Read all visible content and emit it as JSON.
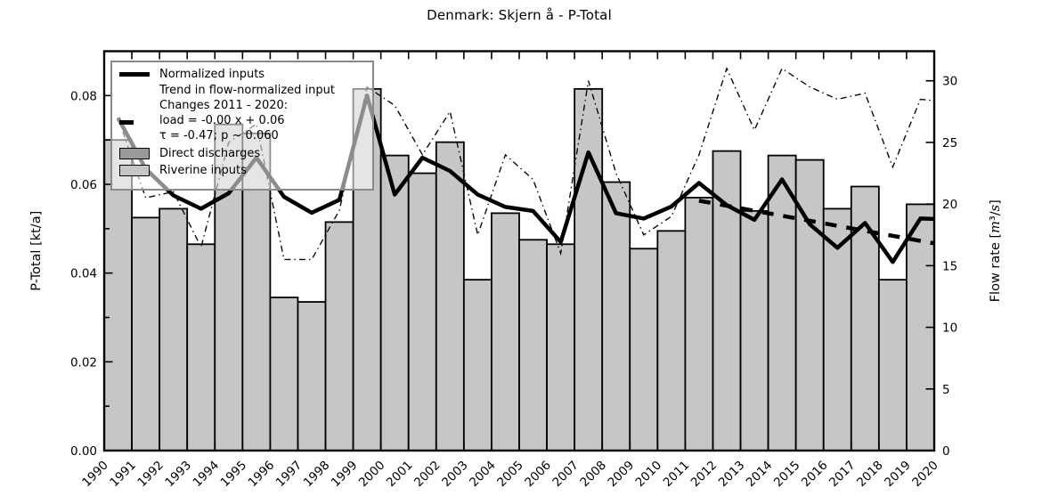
{
  "title": "Denmark: Skjern å - P-Total",
  "axes": {
    "left": {
      "label": "P-Total [kt/a]",
      "max": 0.09,
      "major_ticks": [
        {
          "v": 0.0,
          "label": "0.00"
        },
        {
          "v": 0.02,
          "label": "0.02"
        },
        {
          "v": 0.04,
          "label": "0.04"
        },
        {
          "v": 0.06,
          "label": "0.06"
        },
        {
          "v": 0.08,
          "label": "0.08"
        }
      ],
      "minor_ticks": [
        0.01,
        0.03,
        0.05,
        0.07
      ]
    },
    "right": {
      "label": "Flow rate",
      "units": "[m³/s]",
      "max": 32.4,
      "major_ticks": [
        {
          "v": 0,
          "label": "0"
        },
        {
          "v": 5,
          "label": "5"
        },
        {
          "v": 10,
          "label": "10"
        },
        {
          "v": 15,
          "label": "15"
        },
        {
          "v": 20,
          "label": "20"
        },
        {
          "v": 25,
          "label": "25"
        },
        {
          "v": 30,
          "label": "30"
        }
      ]
    },
    "x": {
      "start": 1990,
      "end": 2020,
      "tick_labels": [
        "1990",
        "1991",
        "1992",
        "1993",
        "1994",
        "1995",
        "1996",
        "1997",
        "1998",
        "1999",
        "2000",
        "2001",
        "2002",
        "2003",
        "2004",
        "2005",
        "2006",
        "2007",
        "2008",
        "2009",
        "2010",
        "2011",
        "2012",
        "2013",
        "2014",
        "2015",
        "2016",
        "2017",
        "2018",
        "2019",
        "2020"
      ]
    }
  },
  "legend": {
    "entries": [
      {
        "type": "line",
        "label": "Normalized inputs"
      },
      {
        "type": "dash",
        "lines": [
          "Trend in flow-normalized input",
          "Changes 2011 - 2020:",
          "load = -0.00 x +  0.06",
          "τ = -0.47; p ~ 0.060"
        ]
      },
      {
        "type": "patch",
        "color": "#9a9a9a",
        "label": "Direct discharges"
      },
      {
        "type": "patch",
        "color": "#c6c6c6",
        "label": "Riverine inputs"
      }
    ]
  },
  "chart_data": {
    "type": "bar",
    "title": "Denmark: Skjern å - P-Total",
    "xlabel": "",
    "ylabel_left": "P-Total [kt/a]",
    "ylabel_right": "Flow rate [m³/s]",
    "ylim_left": [
      0,
      0.09
    ],
    "ylim_right": [
      0,
      32.4
    ],
    "xlim": [
      1990,
      2020
    ],
    "legend_position": "upper left",
    "grid": false,
    "bars": {
      "name": "Riverine inputs",
      "axis": "left",
      "note": "bars span [year, year+1]",
      "years": [
        1990,
        1991,
        1992,
        1993,
        1994,
        1995,
        1996,
        1997,
        1998,
        1999,
        2000,
        2001,
        2002,
        2003,
        2004,
        2005,
        2006,
        2007,
        2008,
        2009,
        2010,
        2011,
        2012,
        2013,
        2014,
        2015,
        2016,
        2017,
        2018,
        2019
      ],
      "values": [
        0.07,
        0.0525,
        0.0545,
        0.0465,
        0.0735,
        0.0715,
        0.0345,
        0.0335,
        0.0515,
        0.0815,
        0.0665,
        0.0625,
        0.0695,
        0.0385,
        0.0535,
        0.0475,
        0.0465,
        0.0815,
        0.0605,
        0.0455,
        0.0495,
        0.057,
        0.0675,
        0.054,
        0.0665,
        0.0655,
        0.0545,
        0.0595,
        0.0385,
        0.0555
      ]
    },
    "series": [
      {
        "name": "Normalized inputs",
        "style": "thick-solid",
        "axis": "left",
        "points": [
          [
            1990.5,
            0.075
          ],
          [
            1991.5,
            0.0635
          ],
          [
            1992.5,
            0.0575
          ],
          [
            1993.5,
            0.0545
          ],
          [
            1994.5,
            0.058
          ],
          [
            1995.5,
            0.066
          ],
          [
            1996.5,
            0.0572
          ],
          [
            1997.5,
            0.0536
          ],
          [
            1998.5,
            0.0565
          ],
          [
            1999.5,
            0.08
          ],
          [
            2000.5,
            0.0577
          ],
          [
            2001.5,
            0.066
          ],
          [
            2002.5,
            0.063
          ],
          [
            2003.5,
            0.0577
          ],
          [
            2004.5,
            0.0549
          ],
          [
            2005.5,
            0.054
          ],
          [
            2006.5,
            0.047
          ],
          [
            2007.5,
            0.0672
          ],
          [
            2008.5,
            0.0535
          ],
          [
            2009.5,
            0.0523
          ],
          [
            2010.5,
            0.055
          ],
          [
            2011.5,
            0.0603
          ],
          [
            2012.5,
            0.0553
          ],
          [
            2013.5,
            0.052
          ],
          [
            2014.5,
            0.0611
          ],
          [
            2015.5,
            0.051
          ],
          [
            2016.5,
            0.0457
          ],
          [
            2017.5,
            0.0513
          ],
          [
            2018.5,
            0.0425
          ],
          [
            2019.5,
            0.0523
          ],
          [
            2020,
            0.0522
          ]
        ]
      },
      {
        "name": "Trend in flow-normalized input",
        "style": "thick-dashed",
        "axis": "left",
        "points": [
          [
            2011.5,
            0.0563
          ],
          [
            2020,
            0.0467
          ]
        ]
      },
      {
        "name": "Flow rate",
        "style": "thin-dashdot",
        "axis": "right",
        "points": [
          [
            1990.5,
            27
          ],
          [
            1991.5,
            20.5
          ],
          [
            1992.5,
            21
          ],
          [
            1993.5,
            16.5
          ],
          [
            1994.5,
            25
          ],
          [
            1995.5,
            26.5
          ],
          [
            1996.5,
            15.5
          ],
          [
            1997.5,
            15.5
          ],
          [
            1998.5,
            19.5
          ],
          [
            1999.5,
            29.5
          ],
          [
            2000.5,
            28
          ],
          [
            2001.5,
            24
          ],
          [
            2002.5,
            27.5
          ],
          [
            2003.5,
            17.5
          ],
          [
            2004.5,
            24
          ],
          [
            2005.5,
            22
          ],
          [
            2006.5,
            16
          ],
          [
            2007.5,
            30
          ],
          [
            2008.5,
            22.5
          ],
          [
            2009.5,
            17.5
          ],
          [
            2010.5,
            19
          ],
          [
            2011.5,
            24
          ],
          [
            2012.5,
            31
          ],
          [
            2013.5,
            26
          ],
          [
            2014.5,
            31
          ],
          [
            2015.5,
            29.5
          ],
          [
            2016.5,
            28.5
          ],
          [
            2017.5,
            29
          ],
          [
            2018.5,
            23
          ],
          [
            2019.5,
            28.5
          ],
          [
            2020,
            28.4
          ]
        ]
      }
    ]
  }
}
